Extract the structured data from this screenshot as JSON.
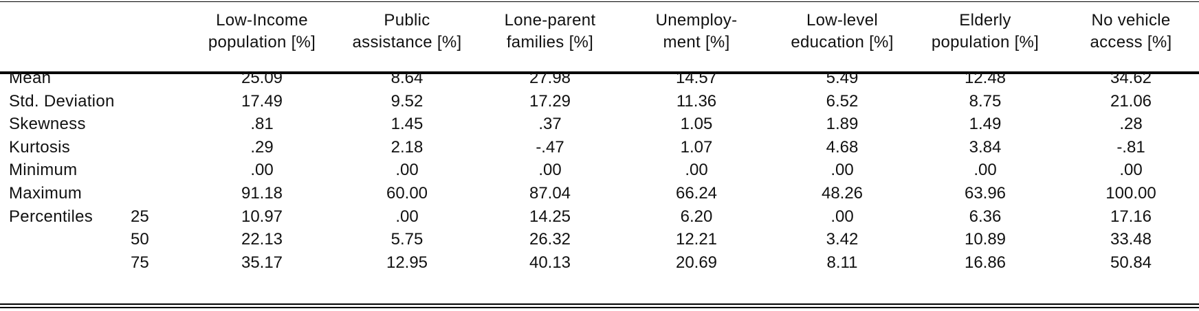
{
  "table": {
    "columns": [
      {
        "line1": "Low-Income",
        "line2": "population [%]"
      },
      {
        "line1": "Public",
        "line2": "assistance [%]"
      },
      {
        "line1": "Lone-parent",
        "line2": "families [%]"
      },
      {
        "line1": "Unemploy-",
        "line2": "ment [%]"
      },
      {
        "line1": "Low-level",
        "line2": "education [%]"
      },
      {
        "line1": "Elderly",
        "line2": "population [%]"
      },
      {
        "line1": "No vehicle",
        "line2": "access [%]"
      }
    ],
    "rows": [
      {
        "label": "Mean",
        "sub": "",
        "values": [
          "25.09",
          "8.64",
          "27.98",
          "14.57",
          "5.49",
          "12.48",
          "34.62"
        ]
      },
      {
        "label": "Std. Deviation",
        "sub": "",
        "values": [
          "17.49",
          "9.52",
          "17.29",
          "11.36",
          "6.52",
          "8.75",
          "21.06"
        ]
      },
      {
        "label": "Skewness",
        "sub": "",
        "values": [
          ".81",
          "1.45",
          ".37",
          "1.05",
          "1.89",
          "1.49",
          ".28"
        ]
      },
      {
        "label": "Kurtosis",
        "sub": "",
        "values": [
          ".29",
          "2.18",
          "-.47",
          "1.07",
          "4.68",
          "3.84",
          "-.81"
        ]
      },
      {
        "label": "Minimum",
        "sub": "",
        "values": [
          ".00",
          ".00",
          ".00",
          ".00",
          ".00",
          ".00",
          ".00"
        ]
      },
      {
        "label": "Maximum",
        "sub": "",
        "values": [
          "91.18",
          "60.00",
          "87.04",
          "66.24",
          "48.26",
          "63.96",
          "100.00"
        ]
      },
      {
        "label": "Percentiles",
        "sub": "25",
        "values": [
          "10.97",
          ".00",
          "14.25",
          "6.20",
          ".00",
          "6.36",
          "17.16"
        ]
      },
      {
        "label": "",
        "sub": "50",
        "values": [
          "22.13",
          "5.75",
          "26.32",
          "12.21",
          "3.42",
          "10.89",
          "33.48"
        ]
      },
      {
        "label": "",
        "sub": "75",
        "values": [
          "35.17",
          "12.95",
          "40.13",
          "20.69",
          "8.11",
          "16.86",
          "50.84"
        ]
      }
    ]
  }
}
